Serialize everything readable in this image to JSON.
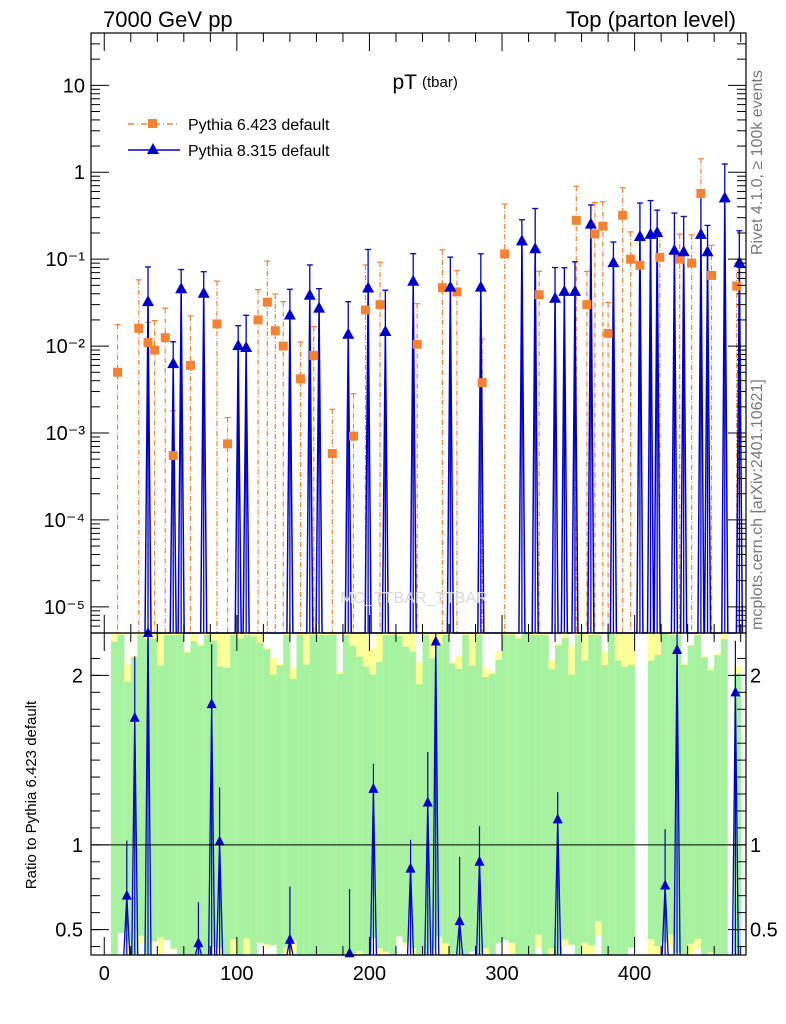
{
  "header": {
    "left": "7000 GeV pp",
    "right": "Top (parton level)"
  },
  "side": {
    "rivet": "Rivet 4.1.0, ≥ 100k events",
    "mcplots": "mcplots.cern.ch [arXiv:2401.10621]"
  },
  "watermark": "MC_TTBAR_TTBAR",
  "colors": {
    "pythia6": "#f58231",
    "pythia8": "#0000cc",
    "band_green": "#a6f2a0",
    "band_yellow": "#ffff99"
  },
  "chart_data": {
    "type": "scatter",
    "title": "pT",
    "title_sub": "(tbar)",
    "xlim": [
      -10,
      484
    ],
    "xticks": [
      "0",
      "100",
      "200",
      "300",
      "400"
    ],
    "main": {
      "yscale": "log",
      "ylim": [
        5e-06,
        40
      ],
      "ytick_labels": [
        "10⁻⁵",
        "10⁻⁴",
        "10⁻³",
        "10⁻²",
        "10⁻¹",
        "1",
        "10"
      ],
      "ytick_values": [
        1e-05,
        0.0001,
        0.001,
        0.01,
        0.1,
        1,
        10
      ]
    },
    "ratio": {
      "ylabel": "Ratio to Pythia 6.423 default",
      "ylim": [
        0.35,
        2.25
      ],
      "ytick_labels": [
        "0.5",
        "1",
        "2"
      ],
      "ytick_values": [
        0.5,
        1,
        2
      ]
    },
    "legend": {
      "position": "top-left",
      "entries": [
        "Pythia 6.423 default",
        "Pythia 8.315 default"
      ]
    },
    "series": [
      {
        "name": "Pythia 6.423 default",
        "style": "dash-dot, square markers",
        "x": [
          10,
          26,
          33,
          38,
          46,
          52,
          65,
          85,
          93,
          116,
          123,
          129,
          135,
          148,
          158,
          172,
          188,
          197,
          208,
          236,
          255,
          266,
          285,
          302,
          328,
          356,
          364,
          370,
          376,
          380,
          391,
          397,
          404,
          419,
          434,
          443,
          450,
          458,
          477
        ],
        "y": [
          0.005,
          0.016,
          0.011,
          0.009,
          0.0125,
          0.00055,
          0.006,
          0.018,
          0.00075,
          0.02,
          0.032,
          0.015,
          0.01,
          0.0042,
          0.0078,
          0.00058,
          0.00092,
          0.026,
          0.03,
          0.0105,
          0.047,
          0.042,
          0.0038,
          0.115,
          0.039,
          0.28,
          0.03,
          0.195,
          0.24,
          0.014,
          0.32,
          0.1,
          0.085,
          0.105,
          0.1,
          0.09,
          0.57,
          0.065,
          0.049
        ]
      },
      {
        "name": "Pythia 8.315 default",
        "style": "solid line, triangle markers",
        "x": [
          33,
          52,
          58,
          75,
          101,
          107,
          140,
          155,
          162,
          184,
          199,
          212,
          233,
          261,
          284,
          315,
          325,
          340,
          347,
          355,
          367,
          384,
          404,
          412,
          417,
          430,
          437,
          450,
          455,
          468,
          479
        ],
        "y": [
          0.032,
          0.0062,
          0.045,
          0.04,
          0.01,
          0.0095,
          0.0225,
          0.038,
          0.027,
          0.0135,
          0.046,
          0.0145,
          0.055,
          0.047,
          0.047,
          0.16,
          0.13,
          0.035,
          0.042,
          0.042,
          0.25,
          0.09,
          0.18,
          0.19,
          0.2,
          0.125,
          0.12,
          0.19,
          0.12,
          0.5,
          0.09
        ]
      }
    ],
    "ratio_points": {
      "x": [
        17,
        23,
        33,
        71,
        81,
        87,
        140,
        185,
        203,
        231,
        244,
        250,
        268,
        283,
        342,
        423,
        432,
        476
      ],
      "y": [
        0.7,
        1.75,
        2.3,
        0.42,
        1.83,
        1.02,
        0.44,
        0.36,
        1.33,
        0.86,
        1.25,
        2.2,
        0.55,
        0.9,
        1.15,
        0.76,
        2.15,
        1.9
      ]
    }
  }
}
